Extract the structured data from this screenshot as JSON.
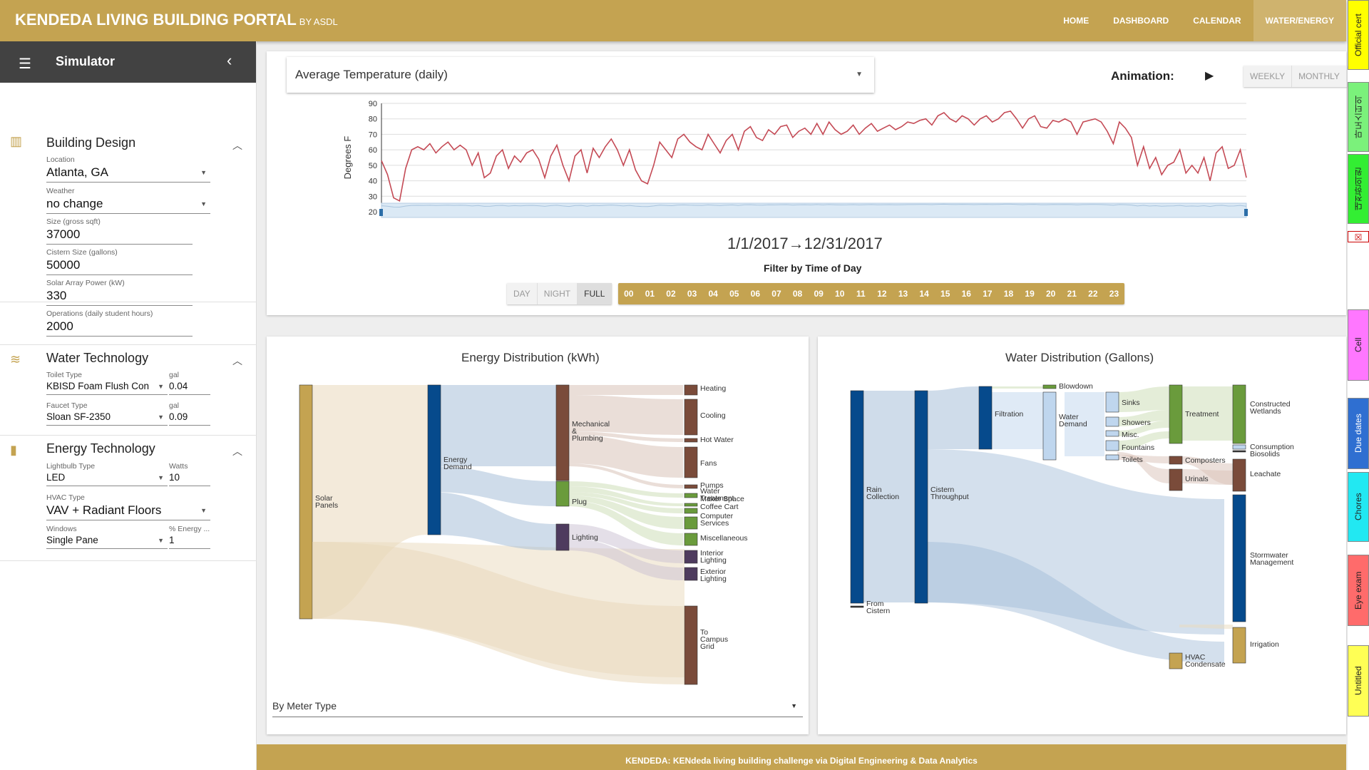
{
  "header": {
    "title": "KENDEDA LIVING BUILDING PORTAL",
    "subtitle": "BY ASDL",
    "nav": [
      "HOME",
      "DASHBOARD",
      "CALENDAR",
      "WATER/ENERGY"
    ]
  },
  "sidebar": {
    "title": "Simulator",
    "building_design": {
      "title": "Building Design",
      "location_label": "Location",
      "location_value": "Atlanta, GA",
      "weather_label": "Weather",
      "weather_value": "no change",
      "size_label": "Size (gross sqft)",
      "size_value": "37000",
      "cistern_label": "Cistern Size (gallons)",
      "cistern_value": "50000",
      "solar_label": "Solar Array Power (kW)",
      "solar_value": "330",
      "operations_label": "Operations (daily student hours)",
      "operations_value": "2000"
    },
    "water_technology": {
      "title": "Water Technology",
      "toilet_label": "Toilet Type",
      "toilet_value": "KBISD Foam Flush Con",
      "toilet_unit_label": "gal",
      "toilet_unit_value": "0.04",
      "faucet_label": "Faucet Type",
      "faucet_value": "Sloan SF-2350",
      "faucet_unit_label": "gal",
      "faucet_unit_value": "0.09"
    },
    "energy_technology": {
      "title": "Energy Technology",
      "lightbulb_label": "Lightbulb Type",
      "lightbulb_value": "LED",
      "watts_label": "Watts",
      "watts_value": "10",
      "hvac_label": "HVAC Type",
      "hvac_value": "VAV + Radiant Floors",
      "windows_label": "Windows",
      "windows_value": "Single Pane",
      "energy_pct_label": "% Energy ...",
      "energy_pct_value": "1"
    }
  },
  "temperature": {
    "selector": "Average Temperature (daily)",
    "animation_label": "Animation:",
    "weekly": "WEEKLY",
    "monthly": "MONTHLY",
    "date_start": "1/1/2017",
    "date_end": "12/31/2017",
    "filter_label": "Filter by Time of Day",
    "time_modes": [
      "DAY",
      "NIGHT",
      "FULL"
    ],
    "hours": [
      "00",
      "01",
      "02",
      "03",
      "04",
      "05",
      "06",
      "07",
      "08",
      "09",
      "10",
      "11",
      "12",
      "13",
      "14",
      "15",
      "16",
      "17",
      "18",
      "19",
      "20",
      "21",
      "22",
      "23"
    ]
  },
  "energy": {
    "title": "Energy Distribution (kWh)",
    "meter_select": "By Meter Type",
    "nodes": [
      "Solar Panels",
      "Energy Demand",
      "Mechanical & Plumbing",
      "Plug",
      "Lighting",
      "Heating",
      "Cooling",
      "Hot Water",
      "Fans",
      "Pumps",
      "Water Treatment",
      "Maker Space",
      "Coffee Cart",
      "Computer Services",
      "Miscellaneous",
      "Interior Lighting",
      "Exterior Lighting",
      "To Campus Grid"
    ]
  },
  "water": {
    "title": "Water Distribution (Gallons)",
    "nodes": [
      "Rain Collection",
      "From Cistern",
      "Cistern Throughput",
      "Filtration",
      "Blowdown",
      "Water Demand",
      "Sinks",
      "Showers",
      "Misc.",
      "Fountains",
      "Toilets",
      "Treatment",
      "Composters",
      "Urinals",
      "Constructed Wetlands",
      "Consumption",
      "Biosolids",
      "Leachate",
      "Stormwater Management",
      "Irrigation",
      "HVAC Condensate"
    ]
  },
  "chart_data": {
    "type": "line",
    "title": "",
    "ylabel": "Degrees F",
    "xlabel": "",
    "ylim": [
      20,
      90
    ],
    "yticks": [
      20,
      30,
      40,
      50,
      60,
      70,
      80,
      90
    ],
    "x_start": "1/1/2017",
    "x_end": "12/31/2017",
    "series": [
      {
        "name": "",
        "values": [
          53,
          44,
          29,
          27,
          48,
          60,
          62,
          60,
          64,
          58,
          62,
          65,
          60,
          63,
          60,
          50,
          58,
          42,
          45,
          56,
          60,
          48,
          56,
          52,
          58,
          60,
          54,
          42,
          56,
          63,
          50,
          40,
          56,
          60,
          45,
          61,
          55,
          62,
          67,
          60,
          50,
          60,
          47,
          40,
          38,
          50,
          65,
          60,
          55,
          67,
          70,
          65,
          62,
          60,
          70,
          64,
          58,
          66,
          70,
          60,
          72,
          75,
          68,
          66,
          73,
          70,
          75,
          76,
          68,
          72,
          74,
          70,
          77,
          70,
          78,
          73,
          70,
          72,
          76,
          70,
          74,
          77,
          72,
          74,
          76,
          73,
          75,
          78,
          77,
          79,
          80,
          76,
          82,
          84,
          80,
          78,
          82,
          80,
          76,
          80,
          82,
          78,
          80,
          84,
          85,
          80,
          74,
          80,
          82,
          75,
          74,
          79,
          78,
          80,
          78,
          70,
          78,
          79,
          80,
          78,
          72,
          64,
          78,
          74,
          68,
          50,
          62,
          48,
          55,
          44,
          50,
          52,
          60,
          45,
          50,
          45,
          55,
          40,
          58,
          62,
          48,
          50,
          60,
          42
        ]
      }
    ]
  },
  "tabs": [
    "Official cert",
    "마도스터의",
    "대전한의원",
    "Cell",
    "Due dates",
    "Chores",
    "Eye exam",
    "Untitled"
  ],
  "colors": {
    "brand": "#c4a351",
    "line": "#c44a55",
    "dark_blue": "#064a8c",
    "green": "#6a9b3c",
    "brown": "#7a4b3a",
    "purple": "#4e3b5e"
  }
}
